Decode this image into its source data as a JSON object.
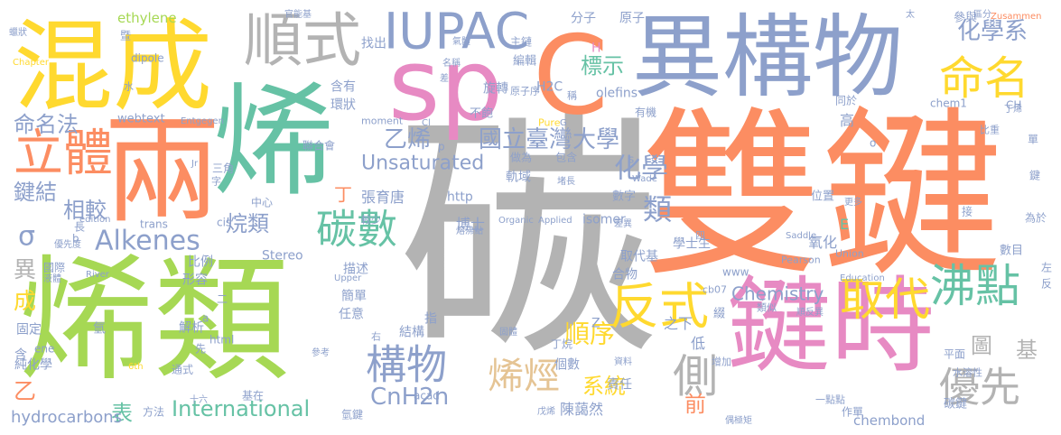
{
  "word_cloud": {
    "words": [
      {
        "text": "碳",
        "color": "#b3b3b3"
      },
      {
        "text": "雙鍵",
        "color": "#fc8d62"
      },
      {
        "text": "烯類",
        "color": "#a6d854"
      },
      {
        "text": "烯",
        "color": "#66c2a5"
      },
      {
        "text": "兩",
        "color": "#fc8d62"
      },
      {
        "text": "異構物",
        "color": "#8da0cb"
      },
      {
        "text": "sp",
        "color": "#e78ac3"
      },
      {
        "text": "C",
        "color": "#fc8d62"
      },
      {
        "text": "鍵時",
        "color": "#e78ac3"
      },
      {
        "text": "混成",
        "color": "#ffd92f"
      },
      {
        "text": "順式",
        "color": "#b3b3b3"
      },
      {
        "text": "IUPAC",
        "color": "#8da0cb"
      },
      {
        "text": "命名",
        "color": "#ffd92f"
      },
      {
        "text": "立體",
        "color": "#fc8d62"
      },
      {
        "text": "反式",
        "color": "#ffd92f"
      },
      {
        "text": "沸點",
        "color": "#66c2a5"
      },
      {
        "text": "取代",
        "color": "#ffd92f"
      },
      {
        "text": "側",
        "color": "#b3b3b3"
      },
      {
        "text": "優先",
        "color": "#b3b3b3"
      },
      {
        "text": "構物",
        "color": "#8da0cb"
      },
      {
        "text": "烯烴",
        "color": "#e5c494"
      },
      {
        "text": "碳數",
        "color": "#66c2a5"
      },
      {
        "text": "Alkenes",
        "color": "#8da0cb"
      },
      {
        "text": "國立臺灣大學",
        "color": "#8da0cb"
      },
      {
        "text": "化學系",
        "color": "#8da0cb"
      },
      {
        "text": "International",
        "color": "#66c2a5"
      },
      {
        "text": "CnH2n",
        "color": "#8da0cb"
      },
      {
        "text": "Chemistry",
        "color": "#8da0cb"
      },
      {
        "text": "命名法",
        "color": "#8da0cb"
      },
      {
        "text": "鍵結",
        "color": "#8da0cb"
      },
      {
        "text": "相較",
        "color": "#8da0cb"
      },
      {
        "text": "烷類",
        "color": "#8da0cb"
      },
      {
        "text": "乙烯",
        "color": "#8da0cb"
      },
      {
        "text": "化學",
        "color": "#8da0cb"
      },
      {
        "text": "類",
        "color": "#8da0cb"
      },
      {
        "text": "Unsaturated",
        "color": "#8da0cb"
      },
      {
        "text": "順序",
        "color": "#ffd92f"
      },
      {
        "text": "系統",
        "color": "#ffd92f"
      },
      {
        "text": "基",
        "color": "#b3b3b3"
      },
      {
        "text": "圖",
        "color": "#b3b3b3"
      },
      {
        "text": "表",
        "color": "#66c2a5"
      },
      {
        "text": "前",
        "color": "#fc8d62"
      },
      {
        "text": "標示",
        "color": "#66c2a5"
      },
      {
        "text": "σ",
        "color": "#8da0cb"
      },
      {
        "text": "異",
        "color": "#b3b3b3"
      },
      {
        "text": "成",
        "color": "#ffd92f"
      },
      {
        "text": "乙",
        "color": "#fc8d62"
      },
      {
        "text": "hydrocarbons",
        "color": "#8da0cb"
      },
      {
        "text": "ethylene",
        "color": "#a6d854"
      },
      {
        "text": "olefins",
        "color": "#8da0cb"
      },
      {
        "text": "chembond",
        "color": "#8da0cb"
      },
      {
        "text": "丁",
        "color": "#fc8d62"
      },
      {
        "text": "張育唐",
        "color": "#8da0cb"
      },
      {
        "text": "陳藹然",
        "color": "#8da0cb"
      },
      {
        "text": "博士",
        "color": "#8da0cb"
      },
      {
        "text": "學士生",
        "color": "#8da0cb"
      },
      {
        "text": "氧化",
        "color": "#8da0cb"
      },
      {
        "text": "碳鍵",
        "color": "#8da0cb"
      },
      {
        "text": "E",
        "color": "#66c2a5"
      },
      {
        "text": "Z",
        "color": "#8da0cb"
      },
      {
        "text": "H",
        "color": "#e78ac3"
      },
      {
        "text": "H2C",
        "color": "#8da0cb"
      },
      {
        "text": "http",
        "color": "#8da0cb"
      },
      {
        "text": "www",
        "color": "#8da0cb"
      },
      {
        "text": "Stereo",
        "color": "#8da0cb"
      },
      {
        "text": "isomer",
        "color": "#8da0cb"
      },
      {
        "text": "trans",
        "color": "#8da0cb"
      },
      {
        "text": "cis",
        "color": "#8da0cb"
      },
      {
        "text": "dipole",
        "color": "#8da0cb"
      },
      {
        "text": "moment",
        "color": "#8da0cb"
      },
      {
        "text": "webtext",
        "color": "#8da0cb"
      },
      {
        "text": "cb07",
        "color": "#8da0cb"
      },
      {
        "text": "acad",
        "color": "#8da0cb"
      },
      {
        "text": "html",
        "color": "#8da0cb"
      },
      {
        "text": "ene",
        "color": "#8da0cb"
      },
      {
        "text": "chem1",
        "color": "#8da0cb"
      },
      {
        "text": "CH",
        "color": "#8da0cb"
      },
      {
        "text": "Saddle",
        "color": "#8da0cb"
      },
      {
        "text": "Pearson",
        "color": "#8da0cb"
      },
      {
        "text": "Union",
        "color": "#8da0cb"
      },
      {
        "text": "Education",
        "color": "#8da0cb"
      },
      {
        "text": "Applied",
        "color": "#8da0cb"
      },
      {
        "text": "Organic",
        "color": "#8da0cb"
      },
      {
        "text": "Upper",
        "color": "#8da0cb"
      },
      {
        "text": "River",
        "color": "#8da0cb"
      },
      {
        "text": "Entgegen",
        "color": "#8da0cb"
      },
      {
        "text": "Zusammen",
        "color": "#fc8d62"
      },
      {
        "text": "Chapter",
        "color": "#ffd92f"
      },
      {
        "text": "Pure",
        "color": "#ffd92f"
      },
      {
        "text": "Wade",
        "color": "#8da0cb"
      },
      {
        "text": "6th",
        "color": "#ffd92f"
      },
      {
        "text": "edition",
        "color": "#8da0cb"
      },
      {
        "text": "Jr",
        "color": "#8da0cb"
      },
      {
        "text": "Cl",
        "color": "#8da0cb"
      },
      {
        "text": "G",
        "color": "#8da0cb"
      },
      {
        "text": "p",
        "color": "#8da0cb"
      },
      {
        "text": "b",
        "color": "#8da0cb"
      },
      {
        "text": "a",
        "color": "#8da0cb"
      },
      {
        "text": "s",
        "color": "#8da0cb"
      },
      {
        "text": "o",
        "color": "#8da0cb"
      },
      {
        "text": "分子",
        "color": "#8da0cb"
      },
      {
        "text": "原子",
        "color": "#8da0cb"
      },
      {
        "text": "官能基",
        "color": "#8da0cb"
      },
      {
        "text": "找出",
        "color": "#8da0cb"
      },
      {
        "text": "主鏈",
        "color": "#8da0cb"
      },
      {
        "text": "編輯",
        "color": "#8da0cb"
      },
      {
        "text": "旋轉",
        "color": "#8da0cb"
      },
      {
        "text": "原子序",
        "color": "#8da0cb"
      },
      {
        "text": "含有",
        "color": "#8da0cb"
      },
      {
        "text": "環狀",
        "color": "#8da0cb"
      },
      {
        "text": "不飽",
        "color": "#8da0cb"
      },
      {
        "text": "有機",
        "color": "#8da0cb"
      },
      {
        "text": "同於",
        "color": "#8da0cb"
      },
      {
        "text": "高",
        "color": "#8da0cb"
      },
      {
        "text": "聯合會",
        "color": "#8da0cb"
      },
      {
        "text": "做為",
        "color": "#8da0cb"
      },
      {
        "text": "包含",
        "color": "#8da0cb"
      },
      {
        "text": "軌域",
        "color": "#8da0cb"
      },
      {
        "text": "數字",
        "color": "#8da0cb"
      },
      {
        "text": "位置",
        "color": "#8da0cb"
      },
      {
        "text": "三角",
        "color": "#8da0cb"
      },
      {
        "text": "中心",
        "color": "#8da0cb"
      },
      {
        "text": "長",
        "color": "#8da0cb"
      },
      {
        "text": "優先度",
        "color": "#8da0cb"
      },
      {
        "text": "國際",
        "color": "#8da0cb"
      },
      {
        "text": "比例",
        "color": "#8da0cb"
      },
      {
        "text": "形容",
        "color": "#8da0cb"
      },
      {
        "text": "描述",
        "color": "#8da0cb"
      },
      {
        "text": "簡單",
        "color": "#8da0cb"
      },
      {
        "text": "任意",
        "color": "#8da0cb"
      },
      {
        "text": "取代基",
        "color": "#8da0cb"
      },
      {
        "text": "合物",
        "color": "#8da0cb"
      },
      {
        "text": "之下",
        "color": "#8da0cb"
      },
      {
        "text": "低",
        "color": "#8da0cb"
      },
      {
        "text": "結構",
        "color": "#8da0cb"
      },
      {
        "text": "指",
        "color": "#8da0cb"
      },
      {
        "text": "解析",
        "color": "#8da0cb"
      },
      {
        "text": "固定",
        "color": "#8da0cb"
      },
      {
        "text": "氫",
        "color": "#8da0cb"
      },
      {
        "text": "純化學",
        "color": "#8da0cb"
      },
      {
        "text": "含",
        "color": "#8da0cb"
      },
      {
        "text": "方法",
        "color": "#8da0cb"
      },
      {
        "text": "基在",
        "color": "#8da0cb"
      },
      {
        "text": "氫鍵",
        "color": "#8da0cb"
      },
      {
        "text": "責任",
        "color": "#8da0cb"
      },
      {
        "text": "個數",
        "color": "#8da0cb"
      },
      {
        "text": "丁烷",
        "color": "#8da0cb"
      },
      {
        "text": "資料",
        "color": "#8da0cb"
      },
      {
        "text": "增加",
        "color": "#8da0cb"
      },
      {
        "text": "偶極矩",
        "color": "#8da0cb"
      },
      {
        "text": "作單",
        "color": "#8da0cb"
      },
      {
        "text": "一點點",
        "color": "#8da0cb"
      },
      {
        "text": "水溶性",
        "color": "#8da0cb"
      },
      {
        "text": "平面",
        "color": "#8da0cb"
      },
      {
        "text": "數目",
        "color": "#8da0cb"
      },
      {
        "text": "為於",
        "color": "#8da0cb"
      },
      {
        "text": "更多",
        "color": "#8da0cb"
      },
      {
        "text": "接",
        "color": "#8da0cb"
      },
      {
        "text": "單",
        "color": "#8da0cb"
      },
      {
        "text": "鍵",
        "color": "#8da0cb"
      },
      {
        "text": "參與",
        "color": "#8da0cb"
      },
      {
        "text": "區分",
        "color": "#8da0cb"
      },
      {
        "text": "比重",
        "color": "#8da0cb"
      },
      {
        "text": "丁烯",
        "color": "#8da0cb"
      },
      {
        "text": "蠟狀",
        "color": "#8da0cb"
      },
      {
        "text": "氣體",
        "color": "#8da0cb"
      },
      {
        "text": "液體",
        "color": "#8da0cb"
      },
      {
        "text": "固體",
        "color": "#8da0cb"
      },
      {
        "text": "熔沸點",
        "color": "#8da0cb"
      },
      {
        "text": "參考",
        "color": "#8da0cb"
      },
      {
        "text": "順反異",
        "color": "#8da0cb"
      },
      {
        "text": "差異",
        "color": "#8da0cb"
      },
      {
        "text": "戊烯",
        "color": "#8da0cb"
      },
      {
        "text": "十六",
        "color": "#8da0cb"
      },
      {
        "text": "通式",
        "color": "#8da0cb"
      },
      {
        "text": "較少",
        "color": "#8da0cb"
      },
      {
        "text": "類似",
        "color": "#8da0cb"
      },
      {
        "text": "名稱",
        "color": "#8da0cb"
      },
      {
        "text": "堵長",
        "color": "#8da0cb"
      },
      {
        "text": "綴",
        "color": "#8da0cb"
      },
      {
        "text": "先",
        "color": "#8da0cb"
      },
      {
        "text": "四",
        "color": "#8da0cb"
      },
      {
        "text": "左",
        "color": "#8da0cb"
      },
      {
        "text": "反",
        "color": "#8da0cb"
      },
      {
        "text": "太",
        "color": "#8da0cb"
      },
      {
        "text": "字",
        "color": "#8da0cb"
      },
      {
        "text": "水",
        "color": "#8da0cb"
      },
      {
        "text": "右",
        "color": "#8da0cb"
      },
      {
        "text": "差",
        "color": "#8da0cb"
      },
      {
        "text": "稱",
        "color": "#8da0cb"
      },
      {
        "text": "二",
        "color": "#8da0cb"
      },
      {
        "text": "暨",
        "color": "#8da0cb"
      }
    ]
  }
}
